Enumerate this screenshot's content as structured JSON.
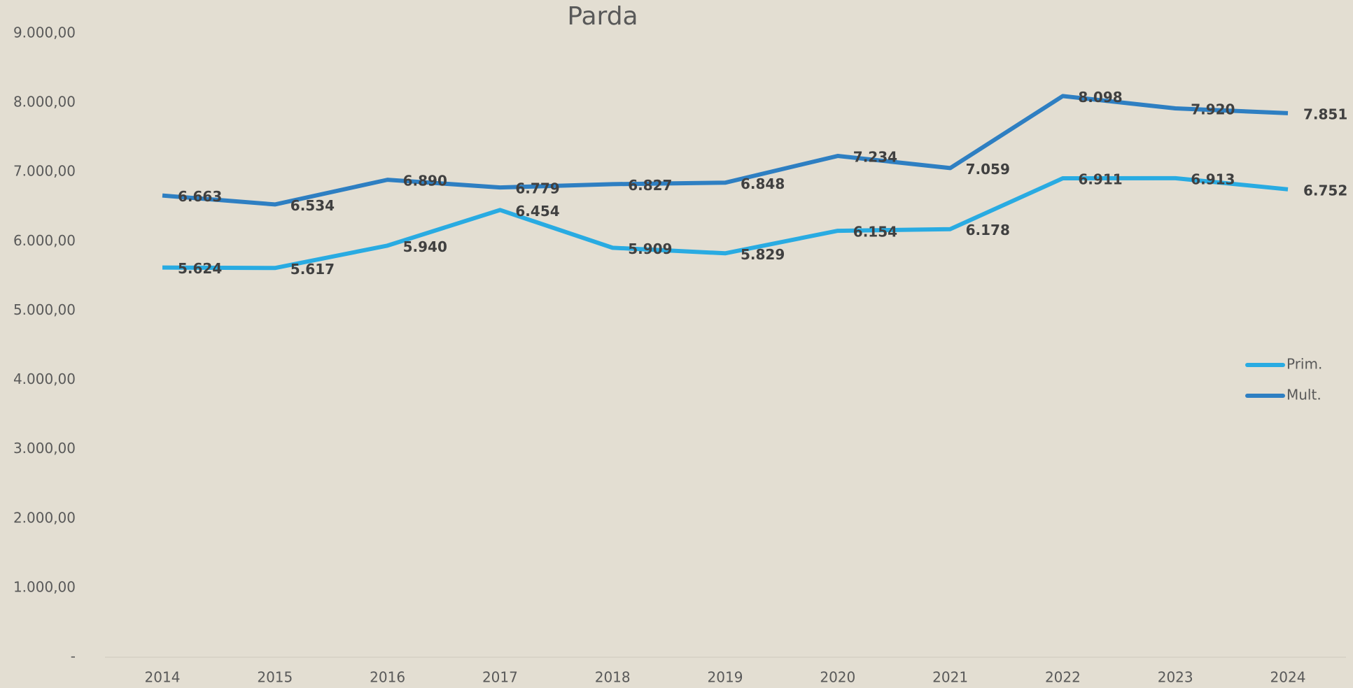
{
  "chart_data": {
    "type": "line",
    "title": "Parda",
    "categories": [
      "2014",
      "2015",
      "2016",
      "2017",
      "2018",
      "2019",
      "2020",
      "2021",
      "2022",
      "2023",
      "2024"
    ],
    "series": [
      {
        "name": "Prim.",
        "color": "#29abe2",
        "values": [
          5624,
          5617,
          5940,
          6454,
          5909,
          5829,
          6154,
          6178,
          6911,
          6913,
          6752
        ],
        "value_labels": [
          "5.624",
          "5.617",
          "5.940",
          "6.454",
          "5.909",
          "5.829",
          "6.154",
          "6.178",
          "6.911",
          "6.913",
          "6.752"
        ]
      },
      {
        "name": "Mult.",
        "color": "#2e7fc2",
        "values": [
          6663,
          6534,
          6890,
          6779,
          6827,
          6848,
          7234,
          7059,
          8098,
          7920,
          7851
        ],
        "value_labels": [
          "6.663",
          "6.534",
          "6.890",
          "6.779",
          "6.827",
          "6.848",
          "7.234",
          "7.059",
          "8.098",
          "7.920",
          "7.851"
        ]
      }
    ],
    "ylim": [
      0,
      9000
    ],
    "yticks": [
      {
        "value": 0,
        "label": "-"
      },
      {
        "value": 1000,
        "label": "1.000,00"
      },
      {
        "value": 2000,
        "label": "2.000,00"
      },
      {
        "value": 3000,
        "label": "3.000,00"
      },
      {
        "value": 4000,
        "label": "4.000,00"
      },
      {
        "value": 5000,
        "label": "5.000,00"
      },
      {
        "value": 6000,
        "label": "6.000,00"
      },
      {
        "value": 7000,
        "label": "7.000,00"
      },
      {
        "value": 8000,
        "label": "8.000,00"
      },
      {
        "value": 9000,
        "label": "9.000,00"
      }
    ],
    "grid": false,
    "legend": "right"
  }
}
